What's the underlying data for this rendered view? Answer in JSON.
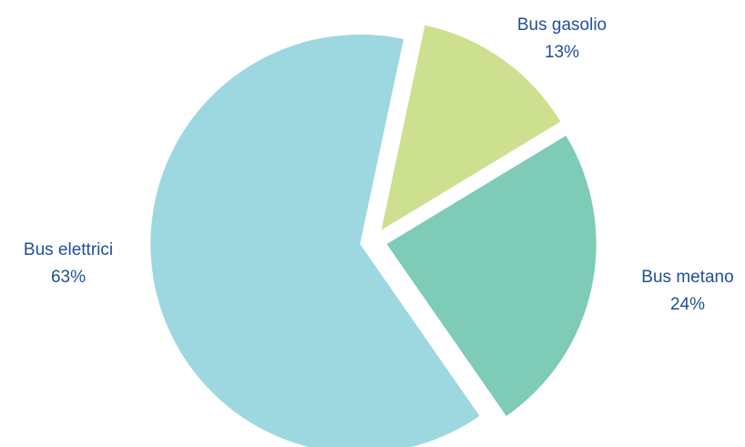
{
  "chart_data": {
    "type": "pie",
    "categories": [
      "Bus gasolio",
      "Bus metano",
      "Bus elettrici"
    ],
    "values": [
      13,
      24,
      63
    ],
    "value_labels": [
      "13%",
      "24%",
      "63%"
    ],
    "colors": [
      "#cce08f",
      "#7ecbb7",
      "#9dd8e0"
    ]
  }
}
